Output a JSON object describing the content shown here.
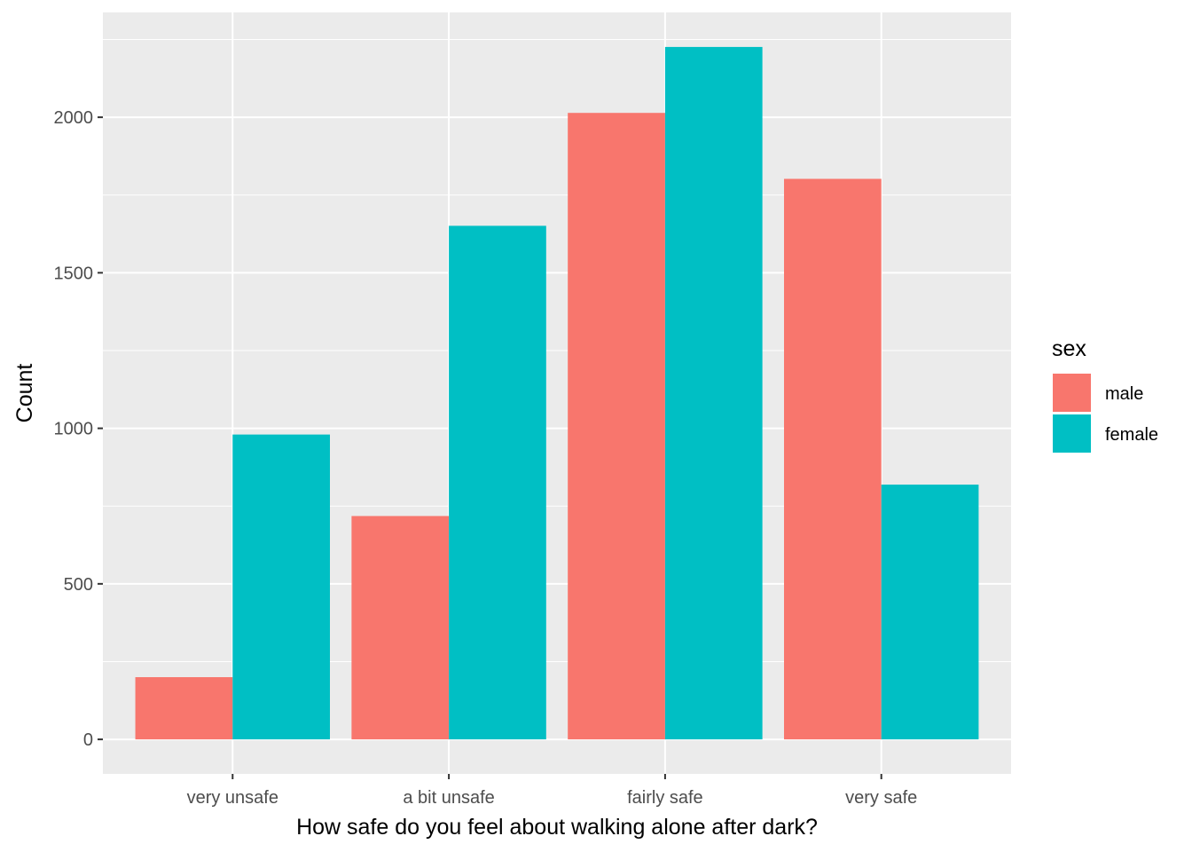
{
  "chart_data": {
    "type": "bar",
    "categories": [
      "very unsafe",
      "a bit unsafe",
      "fairly safe",
      "very safe"
    ],
    "series": [
      {
        "name": "male",
        "color": "#F8766D",
        "values": [
          200,
          718,
          2014,
          1802
        ]
      },
      {
        "name": "female",
        "color": "#00BFC4",
        "values": [
          980,
          1651,
          2226,
          819
        ]
      }
    ],
    "title": "",
    "xlabel": "How safe do you feel about walking alone after dark?",
    "ylabel": "Count",
    "ylim": [
      -111,
      2337
    ],
    "yticks": [
      0,
      500,
      1000,
      1500,
      2000
    ],
    "ytick_labels": [
      "0",
      "500",
      "1000",
      "1500",
      "2000"
    ],
    "legend": {
      "title": "sex",
      "position": "right"
    },
    "grid": true,
    "panel_background": "#EBEBEB"
  }
}
